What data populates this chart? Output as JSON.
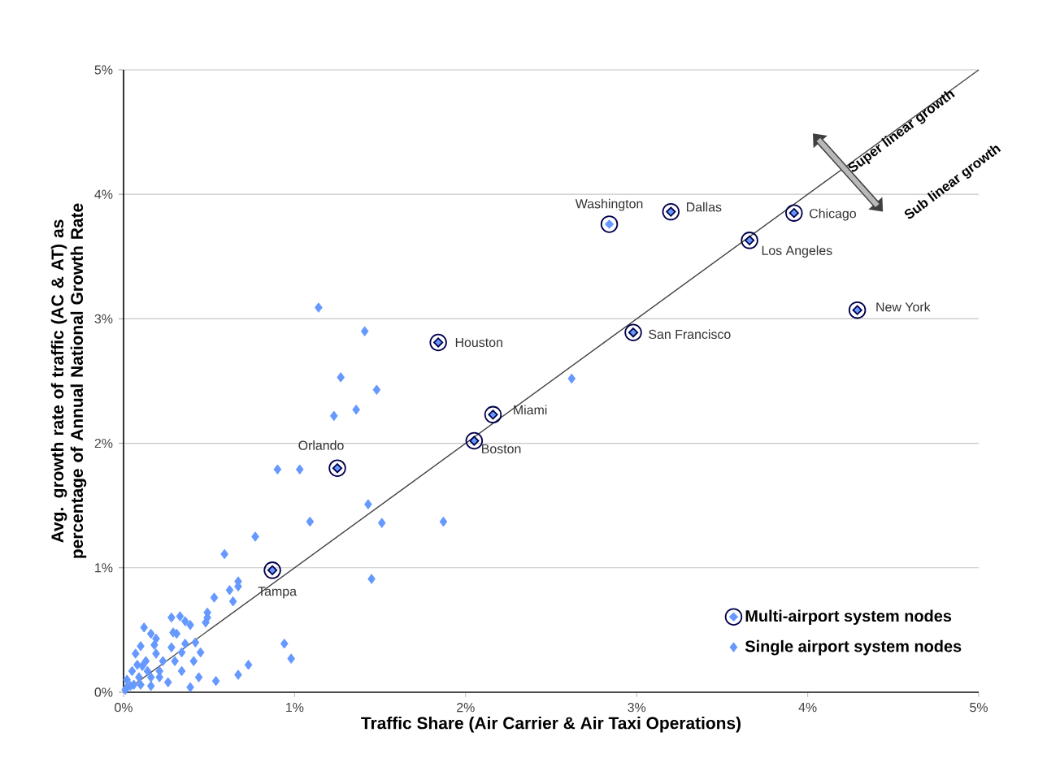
{
  "chart_data": {
    "type": "scatter",
    "xlabel": "Traffic Share (Air Carrier & Air Taxi Operations)",
    "ylabel": "Avg. growth rate of traffic (AC & AT) as percentage of Annual National Growth Rate",
    "xlim": [
      0,
      5
    ],
    "ylim": [
      0,
      5
    ],
    "xticks": [
      {
        "value": 0,
        "label": "0%"
      },
      {
        "value": 1,
        "label": "1%"
      },
      {
        "value": 2,
        "label": "2%"
      },
      {
        "value": 3,
        "label": "3%"
      },
      {
        "value": 4,
        "label": "4%"
      },
      {
        "value": 5,
        "label": "5%"
      }
    ],
    "yticks": [
      {
        "value": 0,
        "label": "0%"
      },
      {
        "value": 1,
        "label": "1%"
      },
      {
        "value": 2,
        "label": "2%"
      },
      {
        "value": 3,
        "label": "3%"
      },
      {
        "value": 4,
        "label": "4%"
      },
      {
        "value": 5,
        "label": "5%"
      }
    ],
    "grid": "y",
    "legend": "bottom right",
    "series": [
      {
        "name": "Multi-airport system nodes",
        "color": "#6699ff",
        "marker": "diamond",
        "x": [
          2.84,
          3.2,
          3.92,
          3.66,
          4.29,
          2.98,
          2.16,
          2.05,
          1.84,
          1.25,
          0.87
        ],
        "values": [
          3.76,
          3.86,
          3.85,
          3.63,
          3.07,
          2.89,
          2.23,
          2.02,
          2.81,
          1.8,
          0.98
        ]
      },
      {
        "name": "Single airport system nodes",
        "color": "#6699ff",
        "marker": "diamond",
        "x": [
          1.14,
          1.41,
          1.27,
          1.48,
          1.36,
          1.23,
          0.9,
          1.03,
          1.43,
          1.51,
          1.87,
          1.09,
          0.77,
          0.59,
          1.45,
          0.67,
          0.67,
          0.62,
          0.64,
          0.53,
          0.49,
          0.49,
          0.94,
          0.98,
          0.73,
          0.67,
          0.54,
          0.44,
          0.39,
          2.62,
          0.33,
          0.36,
          0.29,
          0.39,
          0.42,
          0.45,
          0.34,
          0.34,
          0.28,
          0.23,
          0.12,
          0.16,
          0.18,
          0.1,
          0.07,
          0.13,
          0.05,
          0.02,
          0.09,
          0.16,
          0.21,
          0.26,
          0.16,
          0.1,
          0.04,
          0.01,
          0.02,
          0.14,
          0.08,
          0.19,
          0.31,
          0.48,
          0.28,
          0.36,
          0.3,
          0.41,
          0.21,
          0.06,
          0.11,
          0.19
        ],
        "values": [
          3.09,
          2.9,
          2.53,
          2.43,
          2.27,
          2.22,
          1.79,
          1.79,
          1.51,
          1.36,
          1.37,
          1.37,
          1.25,
          1.11,
          0.91,
          0.89,
          0.85,
          0.82,
          0.73,
          0.76,
          0.64,
          0.6,
          0.39,
          0.27,
          0.22,
          0.14,
          0.09,
          0.12,
          0.04,
          2.52,
          0.61,
          0.57,
          0.48,
          0.54,
          0.4,
          0.32,
          0.32,
          0.17,
          0.36,
          0.25,
          0.52,
          0.47,
          0.38,
          0.37,
          0.31,
          0.25,
          0.17,
          0.1,
          0.12,
          0.12,
          0.12,
          0.08,
          0.05,
          0.06,
          0.05,
          0.02,
          0.04,
          0.17,
          0.22,
          0.31,
          0.47,
          0.56,
          0.6,
          0.39,
          0.25,
          0.25,
          0.17,
          0.06,
          0.21,
          0.43
        ]
      },
      {
        "type": "line",
        "color": "#404040",
        "marker": "none",
        "x": [
          0,
          5
        ],
        "values": [
          0,
          5
        ]
      }
    ],
    "annotations": [
      {
        "text": "Washington",
        "x": 2.84,
        "y": 3.76
      },
      {
        "text": "Dallas",
        "x": 3.2,
        "y": 3.86
      },
      {
        "text": "Chicago",
        "x": 3.92,
        "y": 3.85
      },
      {
        "text": "Los Angeles",
        "x": 3.66,
        "y": 3.63
      },
      {
        "text": "New York",
        "x": 4.29,
        "y": 3.07
      },
      {
        "text": "San Francisco",
        "x": 2.98,
        "y": 2.89
      },
      {
        "text": "Miami",
        "x": 2.16,
        "y": 2.23
      },
      {
        "text": "Boston",
        "x": 2.05,
        "y": 2.02
      },
      {
        "text": "Houston",
        "x": 1.84,
        "y": 2.81
      },
      {
        "text": "Orlando",
        "x": 1.25,
        "y": 1.8
      },
      {
        "text": "Tampa",
        "x": 0.87,
        "y": 0.98
      },
      "Super linear growth",
      "Sub linear growth"
    ]
  }
}
